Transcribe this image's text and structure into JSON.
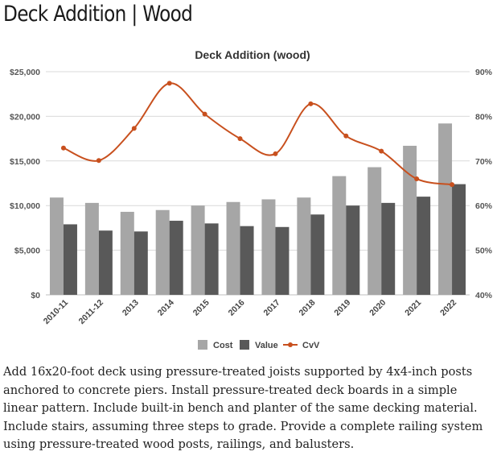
{
  "page": {
    "title": "Deck Addition | Wood",
    "description": "Add 16x20-foot deck using pressure-treated joists supported by 4x4-inch posts anchored to concrete piers. Install pressure-treated deck boards in a simple linear pattern. Include built-in bench and planter of the same decking material. Include stairs, assuming three steps to grade. Provide a complete railing system using pressure-treated wood posts, railings, and balusters."
  },
  "chart_data": {
    "type": "bar",
    "title": "Deck Addition (wood)",
    "categories": [
      "2010-11",
      "2011-12",
      "2013",
      "2014",
      "2015",
      "2016",
      "2017",
      "2018",
      "2019",
      "2020",
      "2021",
      "2022"
    ],
    "series": [
      {
        "name": "Cost",
        "type": "bar",
        "axis": "left",
        "color": "#a6a6a6",
        "values": [
          10900,
          10300,
          9300,
          9500,
          10000,
          10400,
          10700,
          10900,
          13300,
          14300,
          16700,
          19200
        ]
      },
      {
        "name": "Value",
        "type": "bar",
        "axis": "left",
        "color": "#595959",
        "values": [
          7900,
          7200,
          7100,
          8300,
          8000,
          7700,
          7600,
          9000,
          10000,
          10300,
          11000,
          12400
        ]
      },
      {
        "name": "CvV",
        "type": "line",
        "axis": "right",
        "color": "#c8501e",
        "values": [
          72.9,
          70.1,
          77.3,
          87.4,
          80.5,
          75.0,
          71.6,
          82.8,
          75.6,
          72.2,
          66.0,
          64.7
        ]
      }
    ],
    "y_left": {
      "min": 0,
      "max": 25000,
      "ticks": [
        0,
        5000,
        10000,
        15000,
        20000,
        25000
      ],
      "tick_labels": [
        "$0",
        "$5,000",
        "$10,000",
        "$15,000",
        "$20,000",
        "$25,000"
      ]
    },
    "y_right": {
      "min": 40,
      "max": 90,
      "ticks": [
        40,
        50,
        60,
        70,
        80,
        90
      ],
      "tick_labels": [
        "40%",
        "50%",
        "60%",
        "70%",
        "80%",
        "90%"
      ]
    },
    "grid": true,
    "legend": {
      "position": "bottom",
      "items": [
        "Cost",
        "Value",
        "CvV"
      ]
    }
  }
}
